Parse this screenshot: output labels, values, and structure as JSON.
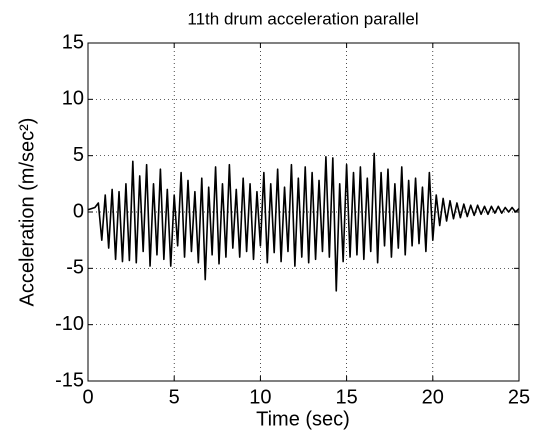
{
  "chart_data": {
    "type": "line",
    "title": "11th drum acceleration parallel",
    "xlabel": "Time (sec)",
    "ylabel": "Acceleration (m/sec²)",
    "xlim": [
      0,
      25
    ],
    "xticks": [
      0,
      5,
      10,
      15,
      20,
      25
    ],
    "ylim": [
      -15,
      15
    ],
    "yticks": [
      -15,
      -10,
      -5,
      0,
      5,
      10,
      15
    ],
    "grid": true,
    "x": [
      0,
      0.2,
      0.4,
      0.6,
      0.8,
      1,
      1.2,
      1.4,
      1.6,
      1.8,
      2,
      2.2,
      2.4,
      2.6,
      2.8,
      3,
      3.2,
      3.4,
      3.6,
      3.8,
      4,
      4.2,
      4.4,
      4.6,
      4.8,
      5,
      5.2,
      5.4,
      5.6,
      5.8,
      6,
      6.2,
      6.4,
      6.6,
      6.8,
      7,
      7.2,
      7.4,
      7.6,
      7.8,
      8,
      8.2,
      8.4,
      8.6,
      8.8,
      9,
      9.2,
      9.4,
      9.6,
      9.8,
      10,
      10.2,
      10.4,
      10.6,
      10.8,
      11,
      11.2,
      11.4,
      11.6,
      11.8,
      12,
      12.2,
      12.4,
      12.6,
      12.8,
      13,
      13.2,
      13.4,
      13.6,
      13.8,
      14,
      14.2,
      14.4,
      14.6,
      14.8,
      15,
      15.2,
      15.4,
      15.6,
      15.8,
      16,
      16.2,
      16.4,
      16.6,
      16.8,
      17,
      17.2,
      17.4,
      17.6,
      17.8,
      18,
      18.2,
      18.4,
      18.6,
      18.8,
      19,
      19.2,
      19.4,
      19.6,
      19.8,
      20,
      20.2,
      20.4,
      20.6,
      20.8,
      21,
      21.2,
      21.4,
      21.6,
      21.8,
      22,
      22.2,
      22.4,
      22.6,
      22.8,
      23,
      23.2,
      23.4,
      23.6,
      23.8,
      24,
      24.2,
      24.4,
      24.6,
      24.8,
      25
    ],
    "series": [
      {
        "name": "acceleration",
        "color": "#000000",
        "values": [
          0.2,
          0.3,
          0.4,
          0.8,
          -2.5,
          1.5,
          -3.2,
          2.0,
          -4.2,
          1.8,
          -4.4,
          2.5,
          -4.3,
          4.5,
          -4.5,
          3.2,
          -3.5,
          4.2,
          -4.8,
          2.5,
          -3.8,
          3.8,
          -4.2,
          2.0,
          -4.8,
          1.5,
          -3.0,
          3.5,
          -4.0,
          2.8,
          -3.5,
          1.8,
          -4.5,
          3.0,
          -6.0,
          2.2,
          -3.8,
          4.0,
          -4.6,
          2.5,
          -4.0,
          4.2,
          -3.2,
          2.0,
          -4.0,
          3.0,
          -3.5,
          2.5,
          -4.2,
          1.8,
          -3.0,
          3.5,
          -4.5,
          2.5,
          -3.6,
          3.8,
          -4.4,
          2.2,
          -3.5,
          4.2,
          -4.8,
          3.0,
          -4.0,
          4.0,
          -4.5,
          3.5,
          -4.2,
          2.8,
          -3.5,
          4.9,
          -4.0,
          4.8,
          -7.0,
          2.5,
          -4.4,
          4.2,
          -4.0,
          3.5,
          -3.8,
          4.0,
          -4.2,
          3.0,
          -3.5,
          5.2,
          -4.5,
          3.5,
          -3.0,
          3.8,
          -4.0,
          2.5,
          -3.2,
          4.0,
          -3.8,
          2.8,
          -3.0,
          3.0,
          -2.8,
          2.2,
          -3.5,
          3.5,
          -2.5,
          1.5,
          -1.2,
          1.2,
          -0.8,
          1.0,
          -0.6,
          0.8,
          -0.5,
          0.7,
          -0.4,
          0.6,
          -0.3,
          0.6,
          -0.2,
          0.5,
          -0.2,
          0.5,
          -0.1,
          0.5,
          -0.1,
          0.4,
          0.0,
          0.4,
          0.0,
          0.3
        ]
      }
    ]
  }
}
